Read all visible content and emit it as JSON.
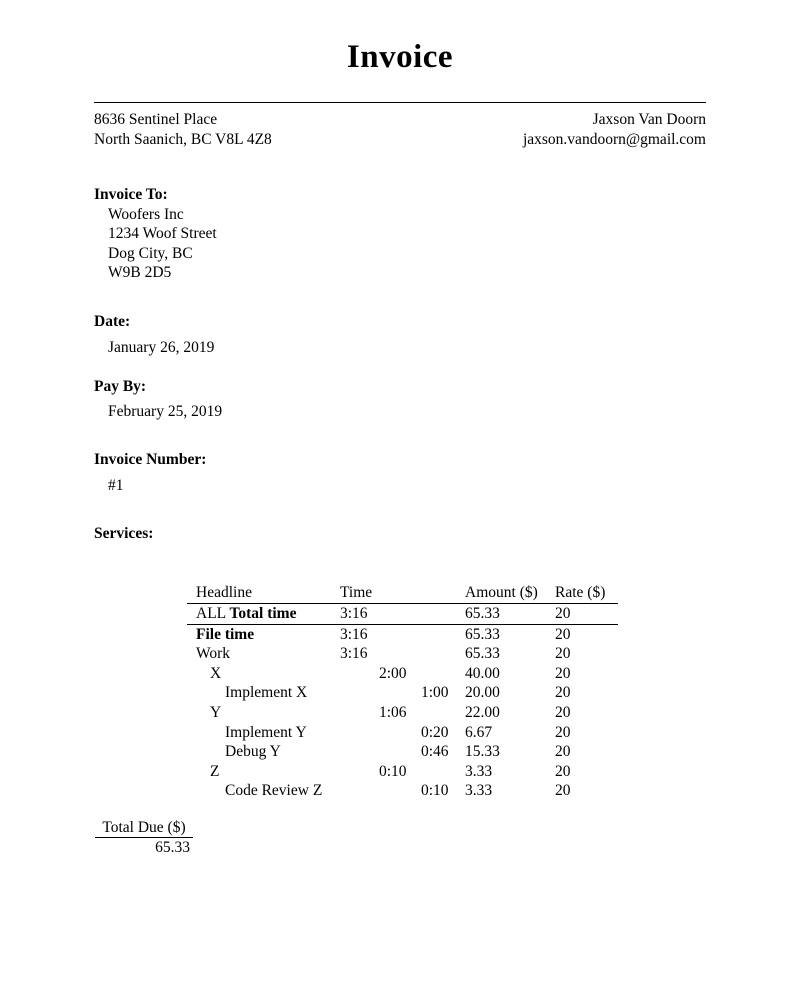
{
  "title": "Invoice",
  "sender": {
    "address_line1": "8636 Sentinel Place",
    "address_line2": "North Saanich, BC V8L 4Z8",
    "name": "Jaxson Van Doorn",
    "email": "jaxson.vandoorn@gmail.com"
  },
  "invoice_to": {
    "label": "Invoice To:",
    "lines": [
      "Woofers Inc",
      "1234 Woof Street",
      "Dog City, BC",
      "W9B 2D5"
    ]
  },
  "date": {
    "label": "Date:",
    "value": "January 26, 2019"
  },
  "pay_by": {
    "label": "Pay By:",
    "value": "February 25, 2019"
  },
  "invoice_number": {
    "label": "Invoice Number:",
    "value": "#1"
  },
  "services": {
    "label": "Services:",
    "table": {
      "headers": {
        "headline": "Headline",
        "time": "Time",
        "amount": "Amount ($)",
        "rate": "Rate ($)"
      },
      "rows": [
        {
          "prefix": "ALL ",
          "label": "Total time",
          "bold": true,
          "level": 0,
          "time": "3:16",
          "amount": "65.33",
          "rate": "20",
          "rule_below": true
        },
        {
          "prefix": "",
          "label": "File time",
          "bold": true,
          "level": 0,
          "time": "3:16",
          "amount": "65.33",
          "rate": "20",
          "rule_below": false
        },
        {
          "prefix": "",
          "label": "Work",
          "bold": false,
          "level": 0,
          "time": "3:16",
          "amount": "65.33",
          "rate": "20",
          "rule_below": false
        },
        {
          "prefix": "",
          "label": "X",
          "bold": false,
          "level": 1,
          "time": "2:00",
          "amount": "40.00",
          "rate": "20",
          "rule_below": false
        },
        {
          "prefix": "",
          "label": "Implement X",
          "bold": false,
          "level": 2,
          "time": "1:00",
          "amount": "20.00",
          "rate": "20",
          "rule_below": false
        },
        {
          "prefix": "",
          "label": "Y",
          "bold": false,
          "level": 1,
          "time": "1:06",
          "amount": "22.00",
          "rate": "20",
          "rule_below": false
        },
        {
          "prefix": "",
          "label": "Implement Y",
          "bold": false,
          "level": 2,
          "time": "0:20",
          "amount": "6.67",
          "rate": "20",
          "rule_below": false
        },
        {
          "prefix": "",
          "label": "Debug Y",
          "bold": false,
          "level": 2,
          "time": "0:46",
          "amount": "15.33",
          "rate": "20",
          "rule_below": false
        },
        {
          "prefix": "",
          "label": "Z",
          "bold": false,
          "level": 1,
          "time": "0:10",
          "amount": "3.33",
          "rate": "20",
          "rule_below": false
        },
        {
          "prefix": "",
          "label": "Code Review Z",
          "bold": false,
          "level": 2,
          "time": "0:10",
          "amount": "3.33",
          "rate": "20",
          "rule_below": false
        }
      ]
    }
  },
  "total_due": {
    "label": "Total Due ($)",
    "value": "65.33"
  },
  "colors": {
    "text": "#000000",
    "background": "#ffffff",
    "rule": "#000000"
  }
}
